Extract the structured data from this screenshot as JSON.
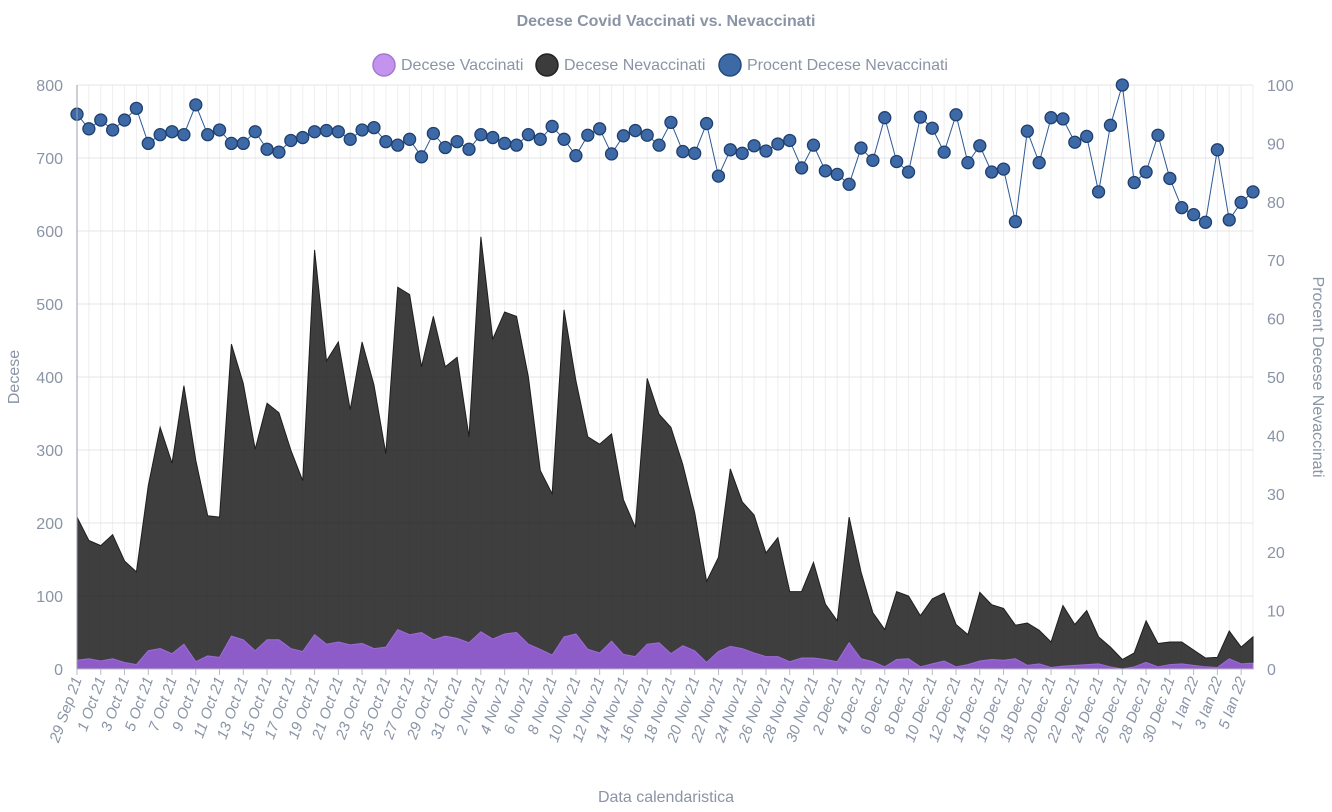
{
  "chart_data": {
    "type": "area",
    "title": "Decese Covid Vaccinati vs. Nevaccinati",
    "xlabel": "Data calendaristica",
    "ylabel": "Decese",
    "y2label": "Procent Decese Nevaccinati",
    "ylim": [
      0,
      800
    ],
    "y2lim": [
      0,
      100
    ],
    "yticks": [
      "0",
      "100",
      "200",
      "300",
      "400",
      "500",
      "600",
      "700",
      "800"
    ],
    "y2ticks": [
      "0",
      "10",
      "20",
      "30",
      "40",
      "50",
      "60",
      "70",
      "80",
      "90",
      "100"
    ],
    "xtick_labels": [
      "29 Sep 21",
      "1 Oct 21",
      "3 Oct 21",
      "5 Oct 21",
      "7 Oct 21",
      "9 Oct 21",
      "11 Oct 21",
      "13 Oct 21",
      "15 Oct 21",
      "17 Oct 21",
      "19 Oct 21",
      "21 Oct 21",
      "23 Oct 21",
      "25 Oct 21",
      "27 Oct 21",
      "29 Oct 21",
      "31 Oct 21",
      "2 Nov 21",
      "4 Nov 21",
      "6 Nov 21",
      "8 Nov 21",
      "10 Nov 21",
      "12 Nov 21",
      "14 Nov 21",
      "16 Nov 21",
      "18 Nov 21",
      "20 Nov 21",
      "22 Nov 21",
      "24 Nov 21",
      "26 Nov 21",
      "28 Nov 21",
      "30 Nov 21",
      "2 Dec 21",
      "4 Dec 21",
      "6 Dec 21",
      "8 Dec 21",
      "10 Dec 21",
      "12 Dec 21",
      "14 Dec 21",
      "16 Dec 21",
      "18 Dec 21",
      "20 Dec 21",
      "22 Dec 21",
      "24 Dec 21",
      "26 Dec 21",
      "28 Dec 21",
      "30 Dec 21",
      "1 Ian 22",
      "3 Ian 22",
      "5 Ian 22"
    ],
    "series": [
      {
        "name": "Decese Vaccinati",
        "color": "#8e5cc9",
        "values": [
          12,
          14,
          11,
          14,
          9,
          6,
          25,
          28,
          21,
          34,
          10,
          18,
          16,
          45,
          40,
          25,
          40,
          40,
          28,
          24,
          47,
          34,
          37,
          33,
          35,
          28,
          30,
          54,
          47,
          50,
          40,
          45,
          42,
          36,
          51,
          41,
          48,
          50,
          34,
          27,
          19,
          44,
          48,
          27,
          22,
          38,
          20,
          17,
          34,
          36,
          21,
          32,
          25,
          9,
          24,
          31,
          28,
          22,
          17,
          17,
          10,
          15,
          15,
          13,
          10,
          36,
          14,
          10,
          3,
          13,
          14,
          3,
          7,
          11,
          3,
          6,
          11,
          13,
          12,
          14,
          5,
          7,
          2,
          4,
          5,
          6,
          7,
          3,
          0,
          3,
          9,
          3,
          6,
          7,
          5,
          3,
          2,
          14,
          7,
          8
        ]
      },
      {
        "name": "Decese Nevaccinati",
        "color": "#3c3c3c",
        "values": [
          208,
          176,
          169,
          184,
          148,
          133,
          251,
          331,
          282,
          388,
          286,
          210,
          208,
          445,
          391,
          301,
          364,
          351,
          300,
          258,
          574,
          422,
          448,
          355,
          448,
          389,
          295,
          523,
          513,
          414,
          483,
          414,
          427,
          318,
          592,
          452,
          489,
          483,
          400,
          272,
          240,
          492,
          395,
          318,
          308,
          322,
          232,
          194,
          398,
          349,
          331,
          280,
          214,
          120,
          153,
          274,
          229,
          211,
          159,
          180,
          106,
          106,
          146,
          89,
          66,
          208,
          133,
          77,
          54,
          106,
          100,
          73,
          96,
          104,
          61,
          47,
          105,
          88,
          83,
          60,
          63,
          53,
          37,
          87,
          61,
          80,
          44,
          30,
          13,
          22,
          66,
          35,
          37,
          37,
          26,
          15,
          16,
          52,
          30,
          44
        ]
      },
      {
        "name": "Procent Decese Nevaccinati",
        "color": "#3d6aa6",
        "axis": "y2",
        "values": [
          95,
          92.5,
          94,
          92.3,
          94,
          96,
          90,
          91.5,
          92,
          91.5,
          96.6,
          91.5,
          92.3,
          90,
          90,
          92,
          89,
          88.5,
          90.5,
          91,
          92,
          92.2,
          92,
          90.7,
          92.3,
          92.7,
          90.3,
          89.7,
          90.7,
          87.7,
          91.7,
          89.3,
          90.3,
          89,
          91.5,
          91,
          90,
          89.7,
          91.5,
          90.7,
          92.9,
          90.7,
          87.9,
          91.4,
          92.5,
          88.2,
          91.3,
          92.2,
          91.4,
          89.7,
          93.6,
          88.6,
          88.3,
          93.4,
          84.4,
          88.9,
          88.3,
          89.6,
          88.7,
          89.9,
          90.5,
          85.8,
          89.7,
          85.3,
          84.7,
          83,
          89.2,
          87.1,
          94.4,
          86.9,
          85.1,
          94.5,
          92.6,
          88.5,
          94.9,
          86.7,
          89.6,
          85.1,
          85.6,
          76.6,
          92.1,
          86.7,
          94.4,
          94.2,
          90.2,
          91.2,
          81.7,
          93.1,
          100,
          83.3,
          85.1,
          91.4,
          84,
          79,
          77.8,
          76.5,
          88.9,
          76.9,
          79.9,
          81.7
        ]
      }
    ]
  }
}
